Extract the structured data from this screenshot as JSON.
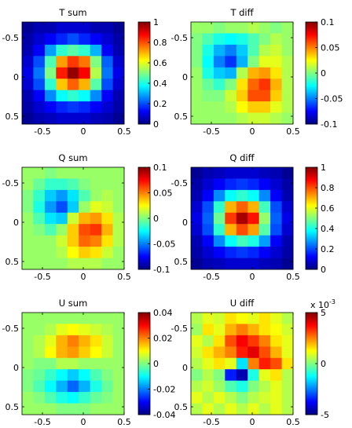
{
  "chart_data": [
    {
      "type": "heatmap",
      "title": "T sum",
      "xlim": [
        -0.75,
        0.5
      ],
      "ylim": [
        -0.7,
        0.6
      ],
      "xticks": [
        -0.5,
        0,
        0.5
      ],
      "xtick_labels": [
        "-0.5",
        "0",
        "0.5"
      ],
      "yticks": [
        -0.5,
        0,
        0.5
      ],
      "ytick_labels": [
        "-0.5",
        "0",
        "0.5"
      ],
      "clim": [
        0,
        1
      ],
      "cticks": [
        0,
        0.2,
        0.4,
        0.6,
        0.8,
        1
      ],
      "ctick_labels": [
        "0",
        "0.2",
        "0.4",
        "0.6",
        "0.8",
        "1"
      ],
      "cbar_multiplier": "",
      "values": [
        [
          0.02,
          0.05,
          0.05,
          0.08,
          0.08,
          0.08,
          0.05,
          0.05,
          0.02
        ],
        [
          0.04,
          0.08,
          0.12,
          0.16,
          0.2,
          0.16,
          0.12,
          0.08,
          0.04
        ],
        [
          0.05,
          0.12,
          0.28,
          0.42,
          0.46,
          0.42,
          0.3,
          0.12,
          0.05
        ],
        [
          0.08,
          0.2,
          0.45,
          0.72,
          0.82,
          0.76,
          0.5,
          0.22,
          0.08
        ],
        [
          0.1,
          0.24,
          0.5,
          0.85,
          0.98,
          0.88,
          0.55,
          0.24,
          0.1
        ],
        [
          0.08,
          0.2,
          0.42,
          0.68,
          0.78,
          0.7,
          0.46,
          0.2,
          0.08
        ],
        [
          0.05,
          0.12,
          0.26,
          0.38,
          0.42,
          0.38,
          0.26,
          0.12,
          0.05
        ],
        [
          0.04,
          0.08,
          0.12,
          0.16,
          0.18,
          0.16,
          0.12,
          0.08,
          0.04
        ],
        [
          0.02,
          0.05,
          0.06,
          0.08,
          0.08,
          0.08,
          0.06,
          0.05,
          0.02
        ]
      ]
    },
    {
      "type": "heatmap",
      "title": "T diff",
      "xlim": [
        -0.75,
        0.5
      ],
      "ylim": [
        -0.7,
        0.6
      ],
      "xticks": [
        -0.5,
        0,
        0.5
      ],
      "xtick_labels": [
        "-0.5",
        "0",
        "0.5"
      ],
      "yticks": [
        -0.5,
        0,
        0.5
      ],
      "ytick_labels": [
        "-0.5",
        "0",
        "0.5"
      ],
      "clim": [
        -0.1,
        0.1
      ],
      "cticks": [
        -0.1,
        -0.05,
        0,
        0.05,
        0.1
      ],
      "ctick_labels": [
        "-0.1",
        "-0.05",
        "0",
        "0.05",
        "0.1"
      ],
      "cbar_multiplier": "",
      "values": [
        [
          0.005,
          0.005,
          0.0,
          0.005,
          0.005,
          0.01,
          0.005,
          0.0,
          0.005
        ],
        [
          0.0,
          -0.01,
          -0.02,
          -0.025,
          -0.02,
          -0.01,
          0.0,
          0.01,
          0.005
        ],
        [
          0.0,
          -0.02,
          -0.04,
          -0.05,
          -0.035,
          -0.01,
          0.01,
          0.015,
          0.005
        ],
        [
          0.0,
          -0.025,
          -0.05,
          -0.065,
          -0.04,
          0.0,
          0.02,
          0.02,
          0.01
        ],
        [
          0.005,
          -0.02,
          -0.035,
          -0.04,
          0.01,
          0.04,
          0.045,
          0.03,
          0.01
        ],
        [
          0.005,
          -0.005,
          -0.015,
          0.0,
          0.03,
          0.055,
          0.065,
          0.04,
          0.01
        ],
        [
          0.005,
          0.0,
          0.0,
          0.015,
          0.035,
          0.06,
          0.06,
          0.035,
          0.01
        ],
        [
          0.005,
          0.005,
          0.005,
          0.01,
          0.025,
          0.035,
          0.035,
          0.02,
          0.01
        ],
        [
          0.005,
          0.005,
          0.005,
          0.005,
          0.01,
          0.015,
          0.015,
          0.01,
          0.005
        ]
      ]
    },
    {
      "type": "heatmap",
      "title": "Q sum",
      "xlim": [
        -0.75,
        0.5
      ],
      "ylim": [
        -0.7,
        0.6
      ],
      "xticks": [
        -0.5,
        0,
        0.5
      ],
      "xtick_labels": [
        "-0.5",
        "0",
        "0.5"
      ],
      "yticks": [
        -0.5,
        0,
        0.5
      ],
      "ytick_labels": [
        "-0.5",
        "0",
        "0.5"
      ],
      "clim": [
        -0.1,
        0.1
      ],
      "cticks": [
        -0.1,
        -0.05,
        0,
        0.05,
        0.1
      ],
      "ctick_labels": [
        "-0.1",
        "-0.05",
        "0",
        "0.05",
        "0.1"
      ],
      "cbar_multiplier": "",
      "values": [
        [
          0.005,
          0.005,
          0.0,
          0.005,
          0.005,
          0.005,
          0.005,
          0.005,
          0.005
        ],
        [
          0.005,
          -0.005,
          -0.015,
          -0.015,
          -0.01,
          0.0,
          0.005,
          0.005,
          0.005
        ],
        [
          0.0,
          -0.015,
          -0.035,
          -0.045,
          -0.03,
          -0.01,
          0.005,
          0.01,
          0.005
        ],
        [
          0.0,
          -0.02,
          -0.045,
          -0.06,
          -0.035,
          0.005,
          0.02,
          0.015,
          0.005
        ],
        [
          0.005,
          -0.01,
          -0.03,
          -0.035,
          0.015,
          0.04,
          0.045,
          0.03,
          0.01
        ],
        [
          0.005,
          0.0,
          -0.01,
          0.005,
          0.035,
          0.06,
          0.065,
          0.04,
          0.01
        ],
        [
          0.005,
          0.005,
          0.005,
          0.015,
          0.035,
          0.055,
          0.05,
          0.03,
          0.01
        ],
        [
          0.005,
          0.005,
          0.005,
          0.01,
          0.025,
          0.035,
          0.03,
          0.015,
          0.005
        ],
        [
          0.005,
          0.005,
          0.005,
          0.005,
          0.01,
          0.01,
          0.01,
          0.005,
          0.005
        ]
      ]
    },
    {
      "type": "heatmap",
      "title": "Q diff",
      "xlim": [
        -0.75,
        0.5
      ],
      "ylim": [
        -0.7,
        0.6
      ],
      "xticks": [
        -0.5,
        0,
        0.5
      ],
      "xtick_labels": [
        "-0.5",
        "0",
        "0.5"
      ],
      "yticks": [
        -0.5,
        0,
        0.5
      ],
      "ytick_labels": [
        "-0.5",
        "0",
        "0.5"
      ],
      "clim": [
        0,
        1
      ],
      "cticks": [
        0,
        0.2,
        0.4,
        0.6,
        0.8,
        1
      ],
      "ctick_labels": [
        "0",
        "0.2",
        "0.4",
        "0.6",
        "0.8",
        "1"
      ],
      "cbar_multiplier": "",
      "values": [
        [
          0.02,
          0.05,
          0.06,
          0.08,
          0.08,
          0.08,
          0.06,
          0.05,
          0.02
        ],
        [
          0.04,
          0.08,
          0.12,
          0.16,
          0.18,
          0.16,
          0.12,
          0.08,
          0.04
        ],
        [
          0.05,
          0.12,
          0.26,
          0.38,
          0.42,
          0.38,
          0.26,
          0.12,
          0.05
        ],
        [
          0.08,
          0.2,
          0.42,
          0.7,
          0.78,
          0.7,
          0.44,
          0.2,
          0.08
        ],
        [
          0.1,
          0.22,
          0.48,
          0.82,
          0.96,
          0.86,
          0.52,
          0.22,
          0.1
        ],
        [
          0.08,
          0.2,
          0.42,
          0.7,
          0.8,
          0.72,
          0.46,
          0.2,
          0.08
        ],
        [
          0.05,
          0.12,
          0.26,
          0.38,
          0.44,
          0.4,
          0.28,
          0.12,
          0.05
        ],
        [
          0.04,
          0.08,
          0.12,
          0.16,
          0.18,
          0.16,
          0.12,
          0.08,
          0.04
        ],
        [
          0.02,
          0.05,
          0.06,
          0.08,
          0.08,
          0.08,
          0.06,
          0.05,
          0.02
        ]
      ]
    },
    {
      "type": "heatmap",
      "title": "U sum",
      "xlim": [
        -0.75,
        0.5
      ],
      "ylim": [
        -0.7,
        0.6
      ],
      "xticks": [
        -0.5,
        0,
        0.5
      ],
      "xtick_labels": [
        "-0.5",
        "0",
        "0.5"
      ],
      "yticks": [
        -0.5,
        0,
        0.5
      ],
      "ytick_labels": [
        "-0.5",
        "0",
        "0.5"
      ],
      "clim": [
        -0.04,
        0.04
      ],
      "cticks": [
        -0.04,
        -0.02,
        0,
        0.02,
        0.04
      ],
      "ctick_labels": [
        "-0.04",
        "-0.02",
        "0",
        "0.02",
        "0.04"
      ],
      "cbar_multiplier": "",
      "values": [
        [
          0.002,
          0.002,
          0.002,
          0.002,
          0.002,
          0.002,
          0.002,
          0.002,
          0.002
        ],
        [
          0.002,
          0.002,
          0.004,
          0.008,
          0.01,
          0.008,
          0.006,
          0.004,
          0.002
        ],
        [
          0.002,
          0.004,
          0.008,
          0.016,
          0.02,
          0.016,
          0.012,
          0.006,
          0.002
        ],
        [
          0.002,
          0.004,
          0.01,
          0.016,
          0.018,
          0.014,
          0.01,
          0.006,
          0.002
        ],
        [
          0.002,
          0.0,
          0.0,
          0.004,
          0.004,
          0.002,
          0.002,
          0.002,
          0.002
        ],
        [
          0.0,
          -0.002,
          -0.006,
          -0.01,
          -0.014,
          -0.01,
          -0.004,
          0.0,
          0.002
        ],
        [
          0.0,
          -0.004,
          -0.01,
          -0.016,
          -0.022,
          -0.016,
          -0.008,
          -0.002,
          0.002
        ],
        [
          0.002,
          0.0,
          -0.004,
          -0.008,
          -0.01,
          -0.006,
          -0.002,
          0.0,
          0.002
        ],
        [
          0.002,
          0.002,
          0.002,
          0.0,
          0.0,
          0.0,
          0.002,
          0.002,
          0.002
        ]
      ]
    },
    {
      "type": "heatmap",
      "title": "U diff",
      "xlim": [
        -0.75,
        0.5
      ],
      "ylim": [
        -0.7,
        0.6
      ],
      "xticks": [
        -0.5,
        0,
        0.5
      ],
      "xtick_labels": [
        "-0.5",
        "0",
        "0.5"
      ],
      "yticks": [
        -0.5,
        0,
        0.5
      ],
      "ytick_labels": [
        "-0.5",
        "0",
        "0.5"
      ],
      "clim": [
        -5,
        5
      ],
      "cticks": [
        -5,
        0,
        5
      ],
      "ctick_labels": [
        "-5",
        "0",
        "5"
      ],
      "cbar_multiplier": "x 10",
      "cbar_multiplier_exp": "-3",
      "values": [
        [
          0.5,
          1.0,
          0.8,
          1.5,
          1.2,
          1.0,
          1.5,
          1.0,
          0.5
        ],
        [
          0.3,
          1.5,
          1.0,
          2.0,
          2.5,
          2.0,
          1.5,
          1.2,
          0.8
        ],
        [
          1.0,
          0.5,
          1.5,
          3.0,
          3.8,
          3.2,
          2.5,
          1.5,
          1.0
        ],
        [
          0.8,
          1.5,
          2.0,
          2.5,
          3.5,
          4.0,
          3.0,
          2.0,
          1.0
        ],
        [
          0.5,
          1.0,
          1.5,
          1.0,
          -1.5,
          2.5,
          3.5,
          3.0,
          1.5
        ],
        [
          0.0,
          0.5,
          0.0,
          -3.5,
          -4.5,
          -1.0,
          1.0,
          1.5,
          0.5
        ],
        [
          0.5,
          0.8,
          0.3,
          -0.5,
          -1.0,
          0.0,
          0.5,
          1.0,
          0.5
        ],
        [
          1.0,
          0.5,
          1.0,
          0.5,
          0.0,
          0.5,
          0.8,
          1.0,
          0.5
        ],
        [
          0.5,
          1.0,
          0.5,
          1.0,
          0.5,
          1.0,
          0.5,
          1.0,
          0.5
        ]
      ]
    }
  ]
}
